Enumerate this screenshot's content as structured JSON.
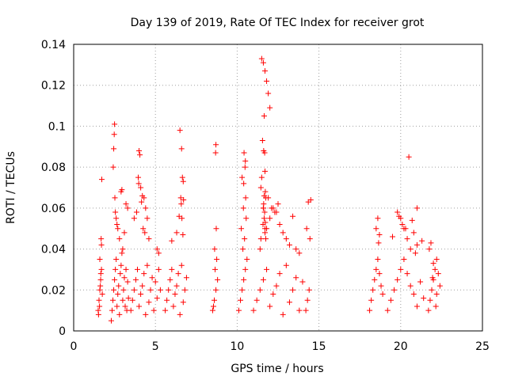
{
  "chart_data": {
    "type": "scatter",
    "title": "Day 139 of 2019, Rate Of TEC Index for receiver grot",
    "xlabel": "GPS time / hours",
    "ylabel": "ROTI / TECUs",
    "xlim": [
      0,
      25
    ],
    "ylim": [
      0,
      0.14
    ],
    "xticks": [
      0,
      5,
      10,
      15,
      20,
      25
    ],
    "yticks": [
      0,
      0.02,
      0.04,
      0.06,
      0.08,
      0.1,
      0.12,
      0.14
    ],
    "xtick_labels": [
      "0",
      "5",
      "10",
      "15",
      "20",
      "25"
    ],
    "ytick_labels": [
      "0",
      "0.02",
      "0.04",
      "0.06",
      "0.08",
      "0.1",
      "0.12",
      "0.14"
    ],
    "grid": true,
    "marker": "+",
    "color": "#ff0000",
    "series": [
      {
        "x": [
          1.5,
          1.55,
          1.6,
          1.65,
          1.7,
          1.75,
          1.6,
          1.68,
          1.72,
          1.58,
          1.63,
          1.66,
          1.52,
          1.7,
          2.3,
          2.35,
          2.4,
          2.45,
          2.5,
          2.55,
          2.6,
          2.65,
          2.7,
          2.75,
          2.8,
          2.85,
          2.9,
          2.95,
          3.0,
          3.05,
          3.1,
          3.15,
          3.2,
          3.25,
          3.3,
          3.35,
          2.5,
          2.48,
          2.45,
          2.42,
          2.6,
          2.9,
          2.95,
          3.3,
          3.2,
          2.7,
          2.8,
          3.0,
          2.52,
          2.55,
          3.1,
          2.65,
          3.5,
          3.6,
          3.7,
          3.8,
          3.9,
          4.0,
          4.1,
          4.2,
          4.3,
          4.4,
          4.5,
          4.6,
          4.7,
          4.8,
          4.9,
          5.0,
          5.1,
          5.2,
          5.3,
          4.0,
          4.05,
          3.95,
          4.1,
          4.2,
          4.3,
          4.4,
          4.5,
          4.15,
          3.98,
          4.6,
          5.1,
          5.2,
          4.25,
          4.35,
          3.7,
          3.85,
          5.6,
          5.7,
          5.8,
          5.9,
          6.0,
          6.1,
          6.2,
          6.3,
          6.4,
          6.5,
          6.6,
          6.7,
          6.8,
          6.9,
          6.5,
          6.6,
          6.65,
          6.7,
          6.55,
          6.72,
          6.45,
          6.62,
          6.58,
          6.68,
          6.3,
          6.0,
          8.5,
          8.6,
          8.7,
          8.8,
          8.65,
          8.75,
          8.55,
          8.7,
          8.68,
          8.72,
          8.62,
          10.1,
          10.2,
          10.3,
          10.4,
          10.5,
          10.6,
          10.35,
          10.45,
          10.25,
          10.55,
          10.42,
          10.5,
          10.48,
          10.3,
          10.4,
          10.52,
          10.38,
          11.0,
          11.2,
          11.4,
          11.6,
          11.8,
          12.0,
          12.2,
          12.4,
          12.6,
          12.8,
          13.0,
          13.2,
          13.4,
          13.6,
          13.8,
          14.0,
          11.5,
          11.6,
          11.7,
          11.8,
          11.9,
          12.0,
          11.65,
          11.55,
          11.62,
          11.68,
          11.7,
          11.5,
          11.45,
          11.72,
          11.75,
          11.6,
          11.6,
          11.65,
          11.7,
          11.75,
          11.68,
          11.62,
          11.58,
          11.7,
          11.65,
          11.72,
          11.4,
          11.45,
          11.8,
          12.0,
          12.2,
          12.4,
          12.6,
          12.8,
          13.0,
          13.2,
          13.4,
          13.6,
          13.8,
          12.5,
          11.9,
          12.1,
          12.3,
          14.2,
          14.3,
          14.4,
          14.5,
          14.35,
          14.45,
          14.25,
          18.1,
          18.2,
          18.3,
          18.4,
          18.5,
          18.6,
          18.7,
          18.8,
          18.9,
          18.5,
          18.6,
          18.7,
          18.65,
          19.2,
          19.4,
          19.6,
          19.8,
          20.0,
          20.2,
          20.4,
          20.6,
          20.8,
          21.0,
          21.2,
          21.4,
          19.8,
          20.0,
          20.2,
          20.4,
          20.6,
          20.8,
          21.0,
          19.9,
          20.1,
          20.5,
          20.9,
          21.0,
          21.3,
          20.3,
          19.5,
          20.7,
          21.7,
          21.8,
          21.9,
          22.0,
          22.1,
          22.2,
          22.3,
          22.4,
          21.75,
          21.85,
          22.0,
          22.2,
          22.15,
          21.95
        ],
        "y": [
          0.01,
          0.015,
          0.02,
          0.025,
          0.03,
          0.018,
          0.035,
          0.045,
          0.074,
          0.012,
          0.022,
          0.028,
          0.008,
          0.042,
          0.005,
          0.01,
          0.015,
          0.02,
          0.025,
          0.03,
          0.035,
          0.012,
          0.018,
          0.022,
          0.008,
          0.028,
          0.032,
          0.038,
          0.015,
          0.02,
          0.026,
          0.012,
          0.03,
          0.01,
          0.024,
          0.016,
          0.101,
          0.096,
          0.089,
          0.08,
          0.055,
          0.068,
          0.069,
          0.06,
          0.062,
          0.05,
          0.045,
          0.04,
          0.065,
          0.058,
          0.048,
          0.052,
          0.01,
          0.015,
          0.02,
          0.025,
          0.03,
          0.012,
          0.018,
          0.022,
          0.028,
          0.008,
          0.032,
          0.014,
          0.02,
          0.026,
          0.01,
          0.024,
          0.016,
          0.03,
          0.02,
          0.088,
          0.086,
          0.075,
          0.07,
          0.066,
          0.065,
          0.06,
          0.055,
          0.063,
          0.072,
          0.045,
          0.04,
          0.038,
          0.05,
          0.048,
          0.055,
          0.058,
          0.01,
          0.015,
          0.02,
          0.025,
          0.03,
          0.012,
          0.018,
          0.022,
          0.028,
          0.008,
          0.032,
          0.014,
          0.02,
          0.026,
          0.098,
          0.089,
          0.075,
          0.073,
          0.065,
          0.064,
          0.056,
          0.055,
          0.062,
          0.047,
          0.048,
          0.044,
          0.01,
          0.015,
          0.02,
          0.025,
          0.03,
          0.035,
          0.012,
          0.091,
          0.087,
          0.05,
          0.04,
          0.01,
          0.015,
          0.02,
          0.025,
          0.03,
          0.035,
          0.04,
          0.045,
          0.05,
          0.055,
          0.087,
          0.083,
          0.08,
          0.075,
          0.072,
          0.065,
          0.06,
          0.01,
          0.015,
          0.02,
          0.025,
          0.03,
          0.012,
          0.018,
          0.022,
          0.028,
          0.008,
          0.032,
          0.014,
          0.02,
          0.026,
          0.01,
          0.024,
          0.133,
          0.131,
          0.127,
          0.122,
          0.116,
          0.109,
          0.105,
          0.093,
          0.088,
          0.087,
          0.078,
          0.075,
          0.07,
          0.068,
          0.065,
          0.06,
          0.06,
          0.055,
          0.05,
          0.045,
          0.058,
          0.062,
          0.052,
          0.048,
          0.066,
          0.053,
          0.04,
          0.045,
          0.05,
          0.055,
          0.06,
          0.058,
          0.052,
          0.048,
          0.045,
          0.042,
          0.056,
          0.04,
          0.038,
          0.062,
          0.065,
          0.06,
          0.058,
          0.01,
          0.015,
          0.02,
          0.064,
          0.063,
          0.045,
          0.05,
          0.01,
          0.015,
          0.02,
          0.025,
          0.03,
          0.035,
          0.028,
          0.022,
          0.018,
          0.05,
          0.055,
          0.047,
          0.043,
          0.01,
          0.015,
          0.02,
          0.025,
          0.03,
          0.035,
          0.028,
          0.022,
          0.018,
          0.012,
          0.024,
          0.016,
          0.058,
          0.055,
          0.05,
          0.045,
          0.04,
          0.048,
          0.042,
          0.056,
          0.052,
          0.085,
          0.038,
          0.06,
          0.044,
          0.05,
          0.046,
          0.054,
          0.01,
          0.015,
          0.02,
          0.025,
          0.03,
          0.035,
          0.028,
          0.022,
          0.04,
          0.043,
          0.033,
          0.018,
          0.012,
          0.026
        ]
      }
    ]
  }
}
